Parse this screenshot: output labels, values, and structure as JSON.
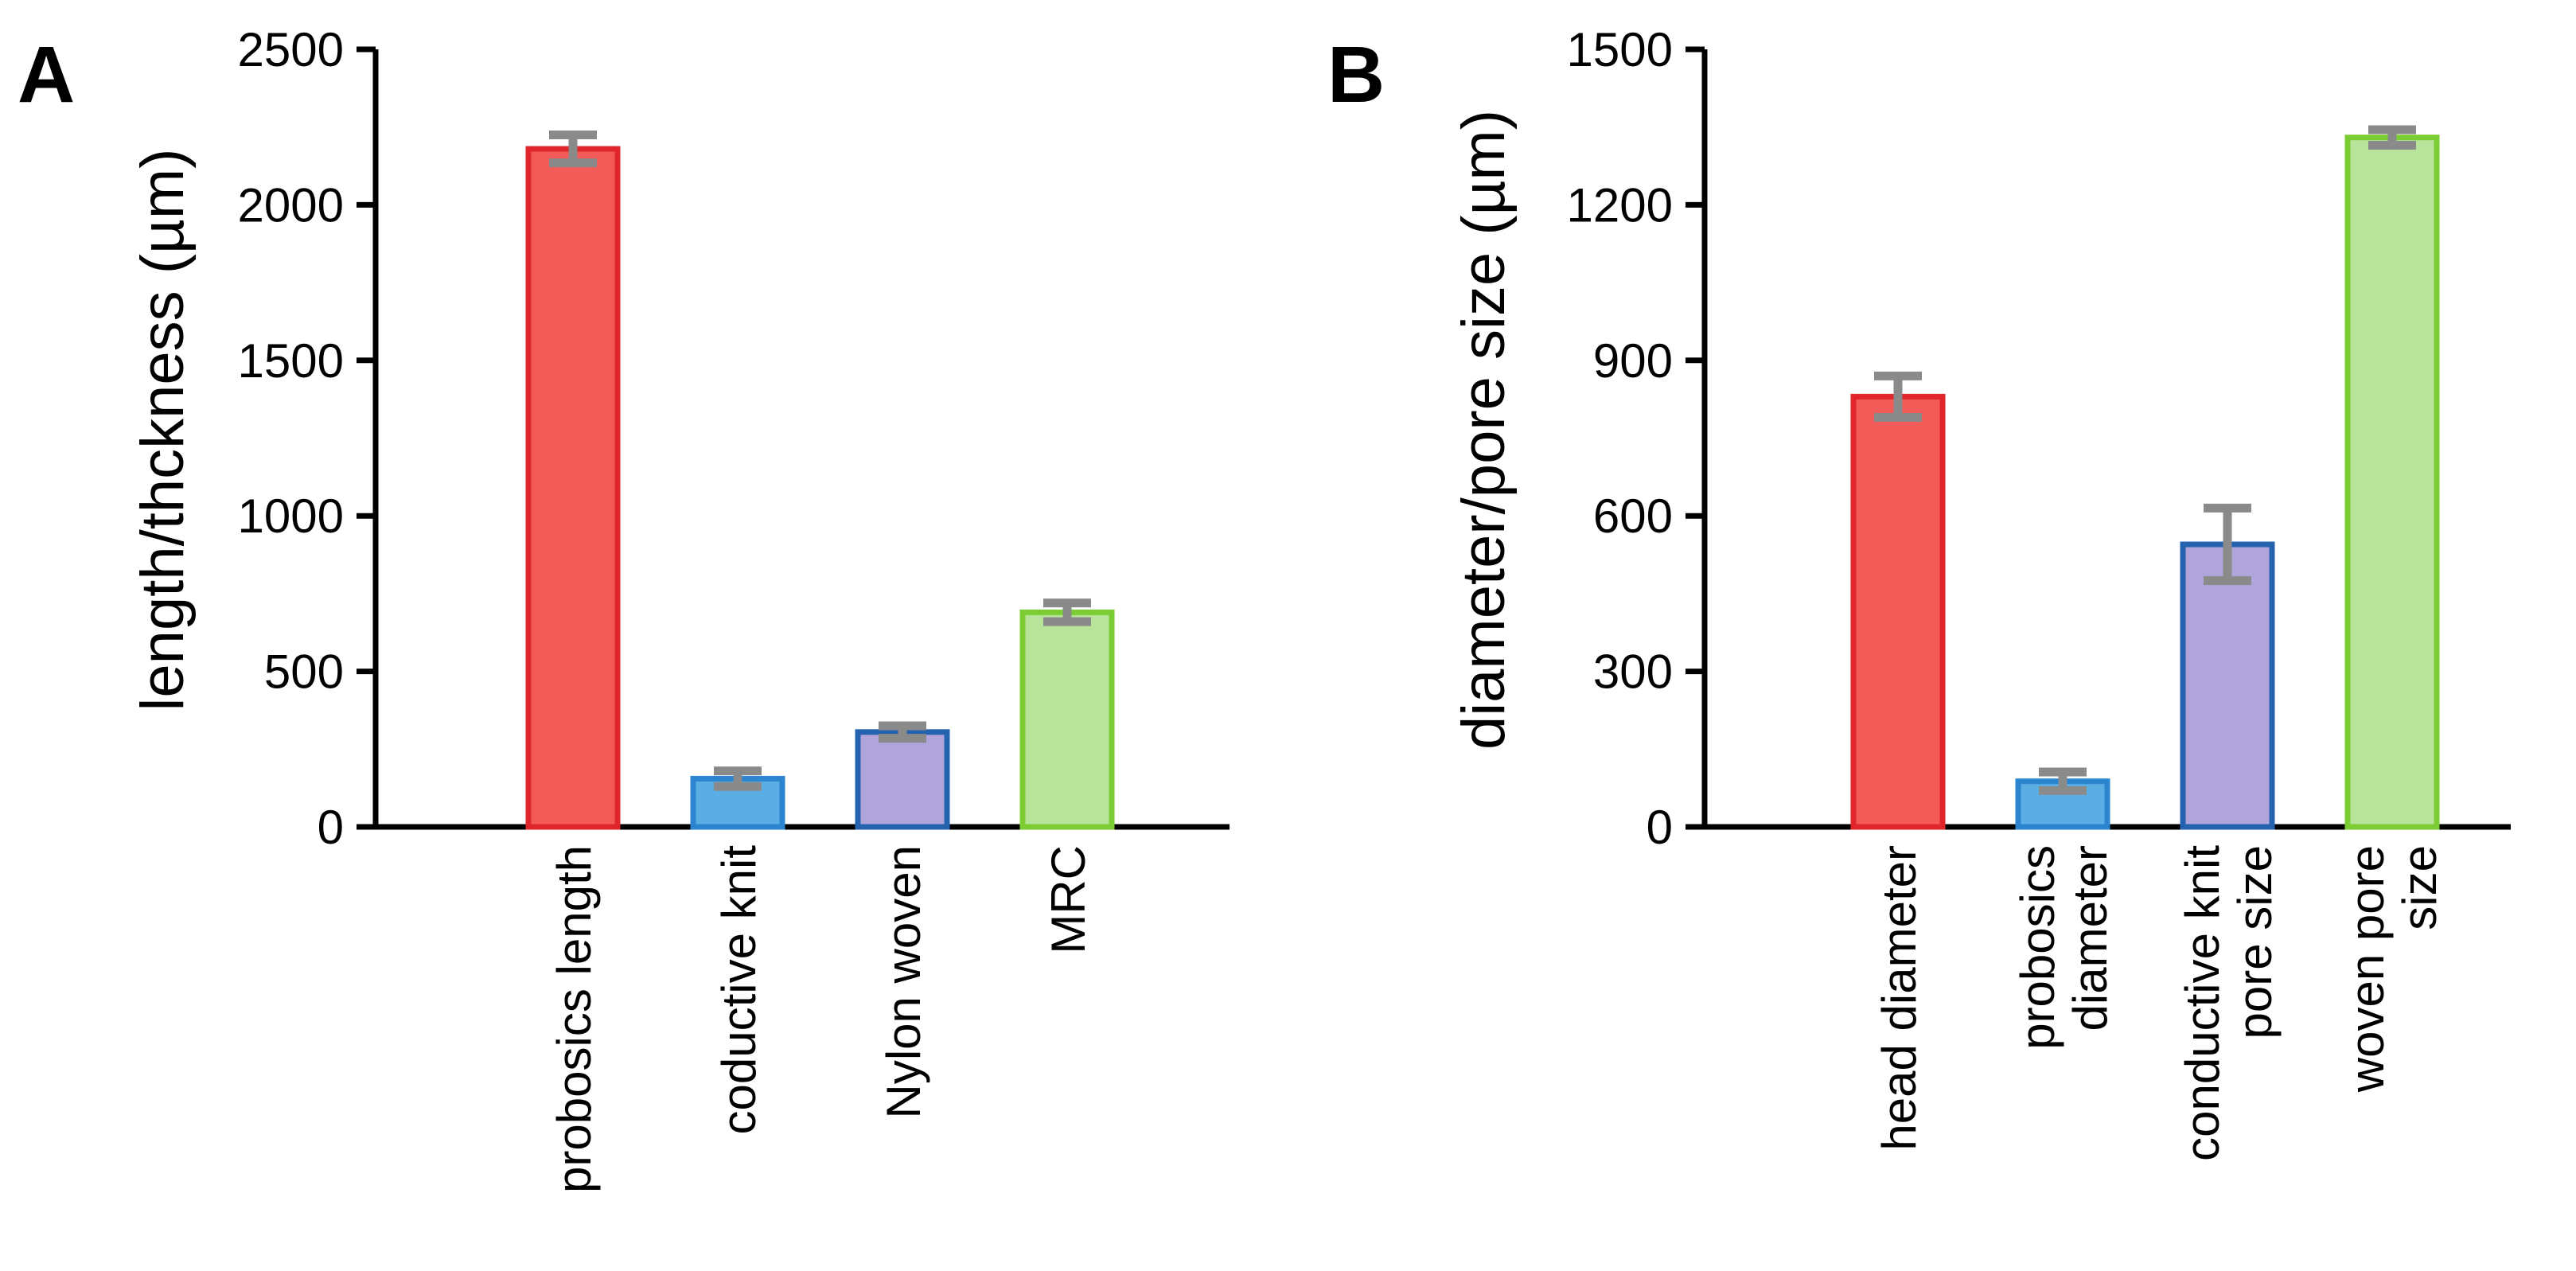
{
  "chart_data": [
    {
      "type": "bar",
      "panel_label": "A",
      "title": "",
      "xlabel": "",
      "ylabel": "length/thckness (µm)",
      "ylim": [
        0,
        2500
      ],
      "yticks": [
        "0",
        "500",
        "1000",
        "1500",
        "2000",
        "2500"
      ],
      "ytick_values": [
        0,
        500,
        1000,
        1500,
        2000,
        2500
      ],
      "grid": false,
      "legend": "none",
      "bars": [
        {
          "label_lines": [
            "probosics length"
          ],
          "value": 2180,
          "error": 45,
          "fill": "#f25b58",
          "stroke": "#e0262a"
        },
        {
          "label_lines": [
            "coductive knit"
          ],
          "value": 155,
          "error": 25,
          "fill": "#5aaee3",
          "stroke": "#2b86cf"
        },
        {
          "label_lines": [
            "Nylon woven"
          ],
          "value": 305,
          "error": 20,
          "fill": "#b0a5db",
          "stroke": "#2563ae"
        },
        {
          "label_lines": [
            "MRC"
          ],
          "value": 690,
          "error": 30,
          "fill": "#b8e39a",
          "stroke": "#7ccc33"
        }
      ]
    },
    {
      "type": "bar",
      "panel_label": "B",
      "title": "",
      "xlabel": "",
      "ylabel": "diameter/pore size (µm)",
      "ylim": [
        0,
        1500
      ],
      "yticks": [
        "0",
        "300",
        "600",
        "900",
        "1200",
        "1500"
      ],
      "ytick_values": [
        0,
        300,
        600,
        900,
        1200,
        1500
      ],
      "grid": false,
      "legend": "none",
      "bars": [
        {
          "label_lines": [
            "head diameter"
          ],
          "value": 830,
          "error": 40,
          "fill": "#f25b58",
          "stroke": "#e0262a"
        },
        {
          "label_lines": [
            "probosics",
            "diameter"
          ],
          "value": 88,
          "error": 18,
          "fill": "#5aaee3",
          "stroke": "#2b86cf"
        },
        {
          "label_lines": [
            "conductive knit",
            "pore size"
          ],
          "value": 545,
          "error": 70,
          "fill": "#b0a5db",
          "stroke": "#2563ae"
        },
        {
          "label_lines": [
            "woven pore",
            "size"
          ],
          "value": 1330,
          "error": 15,
          "fill": "#b8e39a",
          "stroke": "#7ccc33"
        }
      ]
    }
  ]
}
